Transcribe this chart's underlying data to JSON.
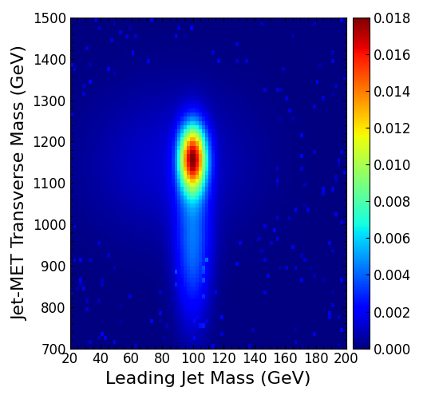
{
  "xlabel": "Leading Jet Mass (GeV)",
  "ylabel": "Jet-MET Transverse Mass (GeV)",
  "xlim": [
    20,
    200
  ],
  "ylim": [
    700,
    1500
  ],
  "xticks": [
    20,
    40,
    60,
    80,
    100,
    120,
    140,
    160,
    180,
    200
  ],
  "yticks": [
    700,
    800,
    900,
    1000,
    1100,
    1200,
    1300,
    1400,
    1500
  ],
  "colorbar_max": 0.018,
  "colorbar_ticks": [
    0,
    0.002,
    0.004,
    0.006,
    0.008,
    0.01,
    0.012,
    0.014,
    0.016,
    0.018
  ],
  "xlabel_fontsize": 16,
  "ylabel_fontsize": 16,
  "tick_fontsize": 12,
  "colorbar_fontsize": 12,
  "figsize": [
    5.3,
    5.0
  ],
  "dpi": 100
}
